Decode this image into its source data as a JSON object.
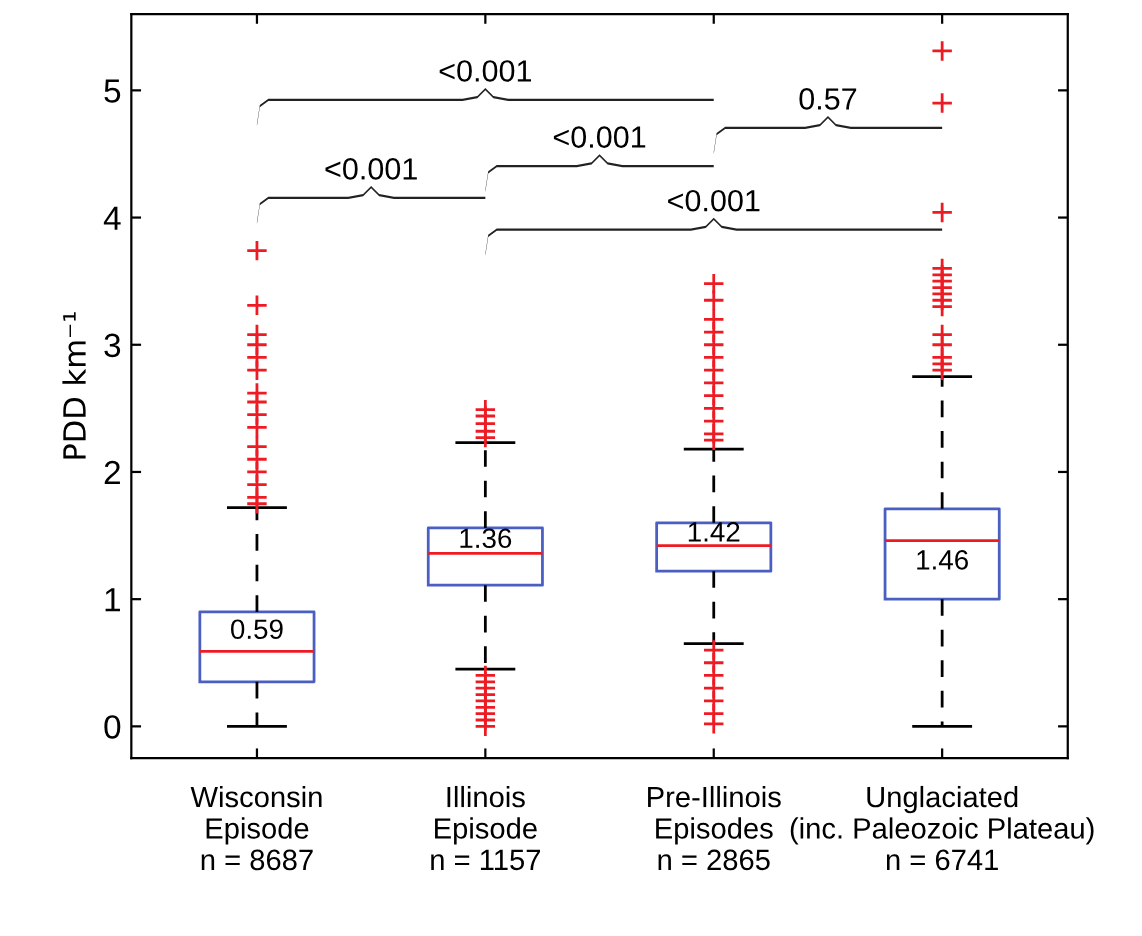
{
  "chart_data": {
    "type": "box",
    "ylabel": "PDD km⁻¹",
    "categories": [
      "Wisconsin\nEpisode\nn = 8687",
      "Illinois\nEpisode\nn = 1157",
      "Pre-Illinois\nEpisodes\nn = 2865",
      "Unglaciated\n(inc. Paleozoic Plateau)\nn = 6741"
    ],
    "boxes": [
      {
        "low": 0,
        "q1": 0.35,
        "median": 0.59,
        "q3": 0.9,
        "high": 1.72,
        "outliers": [
          1.75,
          1.8,
          1.9,
          2.0,
          2.1,
          2.2,
          2.35,
          2.45,
          2.55,
          2.62,
          2.8,
          2.9,
          3.0,
          3.08,
          3.31,
          3.74
        ]
      },
      {
        "low": 0.45,
        "q1": 1.11,
        "median": 1.36,
        "q3": 1.56,
        "high": 2.23,
        "outliers": [
          0.0,
          0.05,
          0.1,
          0.15,
          0.2,
          0.25,
          0.3,
          0.35,
          0.4,
          2.27,
          2.32,
          2.38,
          2.44,
          2.49
        ]
      },
      {
        "low": 0.65,
        "q1": 1.22,
        "median": 1.42,
        "q3": 1.6,
        "high": 2.18,
        "outliers": [
          0.02,
          0.1,
          0.2,
          0.3,
          0.4,
          0.5,
          0.6,
          2.25,
          2.3,
          2.4,
          2.5,
          2.6,
          2.7,
          2.8,
          2.9,
          3.0,
          3.1,
          3.2,
          3.35,
          3.48
        ]
      },
      {
        "low": 0,
        "q1": 1.0,
        "median": 1.46,
        "q3": 1.71,
        "high": 2.75,
        "outliers": [
          2.8,
          2.85,
          2.9,
          3.0,
          3.08,
          3.3,
          3.35,
          3.4,
          3.45,
          3.5,
          3.55,
          3.6,
          4.04,
          4.9,
          5.31
        ]
      }
    ],
    "color": "#4a5fc1",
    "value_labels": [
      "0.59",
      "1.36",
      "1.42",
      "1.46"
    ],
    "ylim": [
      -0.25,
      5.6
    ],
    "yticks": [
      0,
      1,
      2,
      3,
      4,
      5
    ],
    "grid": false,
    "legend": false,
    "marker": "cross",
    "annotations": [
      "<0.001",
      "<0.001",
      "0.57",
      "<0.001",
      "<0.001"
    ]
  }
}
